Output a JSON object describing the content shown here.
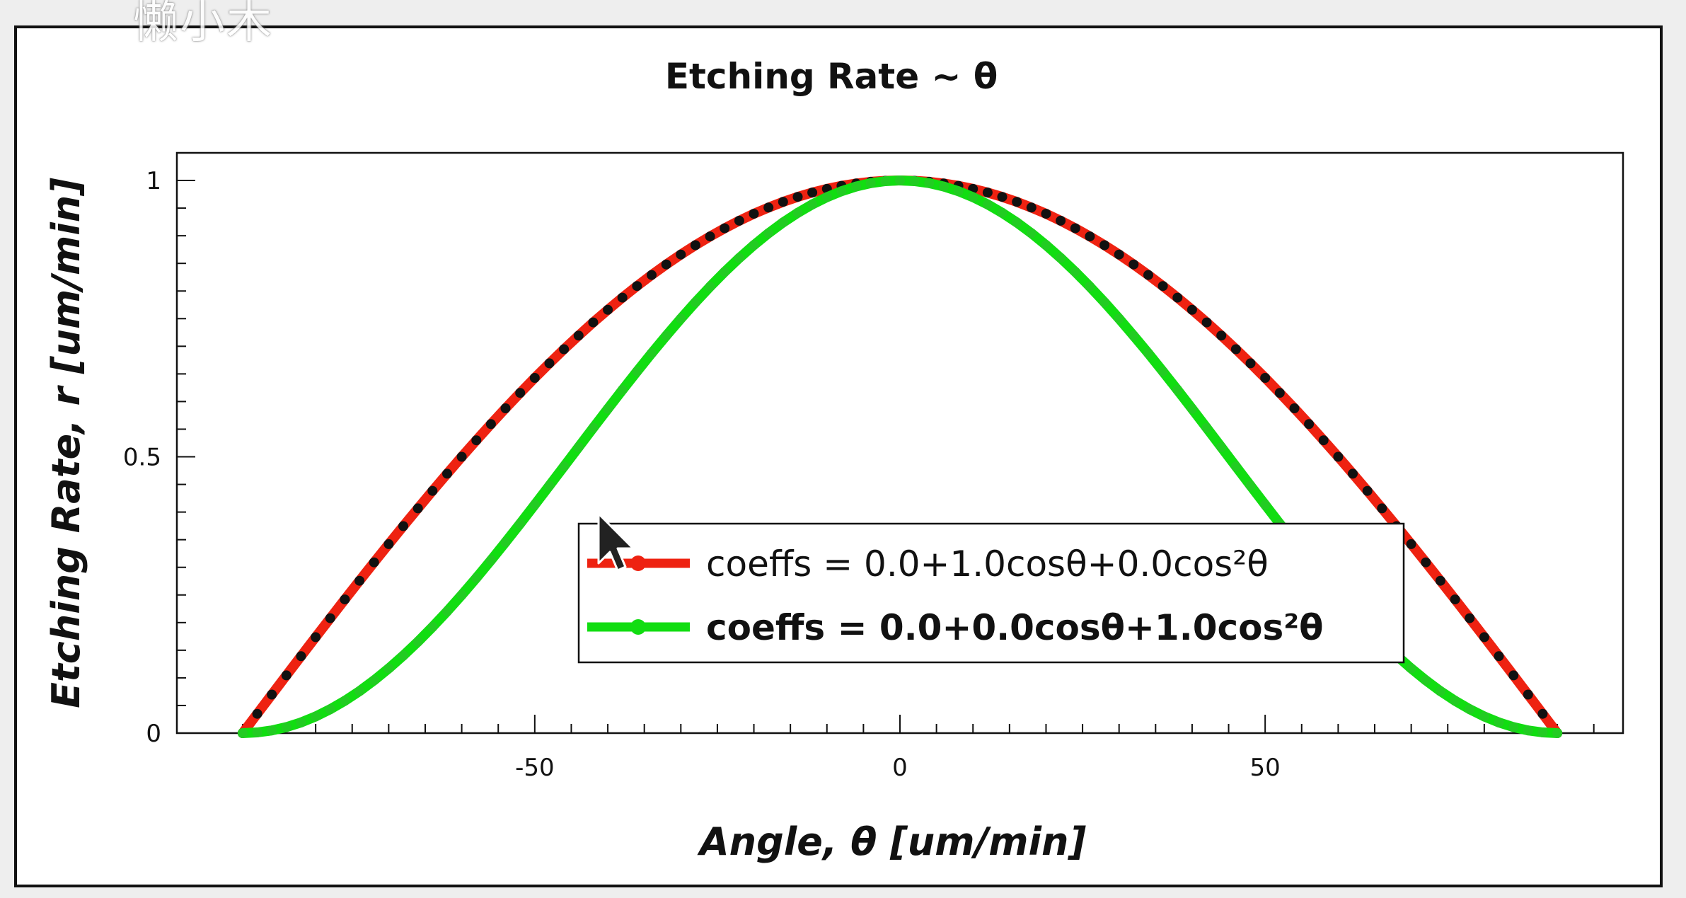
{
  "watermark": "懒小木",
  "chart_data": {
    "type": "line",
    "title": "Etching Rate ~ θ",
    "xlabel": "Angle, θ [um/min]",
    "ylabel": "Etching Rate, r [um/min]",
    "xlim": [
      -99,
      99
    ],
    "ylim": [
      0,
      1.05
    ],
    "xticks": [
      -50,
      0,
      50
    ],
    "xtick_labels": [
      "-50",
      "0",
      "50"
    ],
    "yticks": [
      0,
      0.5,
      1
    ],
    "ytick_labels": [
      "0",
      "0.5",
      "1"
    ],
    "x_range": [
      -90,
      90
    ],
    "grid": false,
    "legend_position": "lower-center",
    "series": [
      {
        "name": "coeffs = 0.0+1.0cosθ+0.0cos²θ",
        "legend_bold": false,
        "color": "#ee2211",
        "marker_color": "#111111",
        "coeffs": [
          0.0,
          1.0,
          0.0
        ]
      },
      {
        "name": "coeffs = 0.0+0.0cosθ+1.0cos²θ",
        "legend_bold": true,
        "color": "#11dd11",
        "marker_color": "#22cc22",
        "coeffs": [
          0.0,
          0.0,
          1.0
        ]
      }
    ]
  }
}
